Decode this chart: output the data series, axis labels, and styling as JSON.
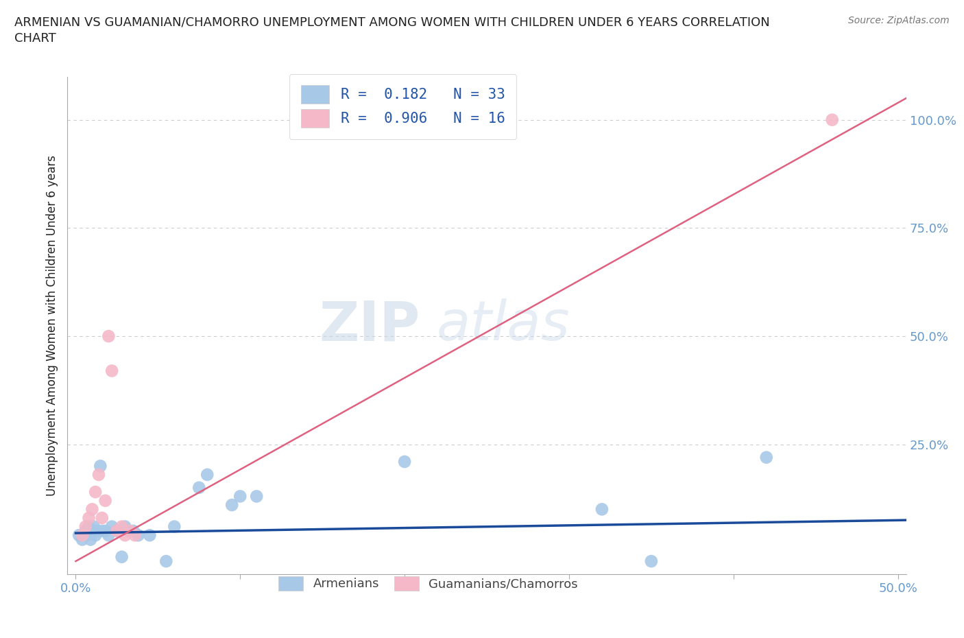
{
  "title": "ARMENIAN VS GUAMANIAN/CHAMORRO UNEMPLOYMENT AMONG WOMEN WITH CHILDREN UNDER 6 YEARS CORRELATION\nCHART",
  "source": "Source: ZipAtlas.com",
  "ylabel": "Unemployment Among Women with Children Under 6 years",
  "xlim": [
    -0.005,
    0.505
  ],
  "ylim": [
    -0.05,
    1.1
  ],
  "xticks": [
    0.0,
    0.1,
    0.2,
    0.3,
    0.4,
    0.5
  ],
  "xticklabels": [
    "0.0%",
    "",
    "",
    "",
    "",
    "50.0%"
  ],
  "ytick_positions": [
    0.0,
    0.25,
    0.5,
    0.75,
    1.0
  ],
  "yticklabels": [
    "",
    "25.0%",
    "50.0%",
    "75.0%",
    "100.0%"
  ],
  "armenian_color": "#a8c8e8",
  "guamanian_color": "#f4b8c8",
  "armenian_line_color": "#1a4a9a",
  "guamanian_line_color": "#e06080",
  "armenian_x": [
    0.002,
    0.004,
    0.006,
    0.007,
    0.008,
    0.009,
    0.01,
    0.011,
    0.012,
    0.013,
    0.015,
    0.016,
    0.018,
    0.02,
    0.022,
    0.025,
    0.028,
    0.03,
    0.032,
    0.035,
    0.038,
    0.045,
    0.055,
    0.06,
    0.075,
    0.08,
    0.095,
    0.1,
    0.11,
    0.2,
    0.32,
    0.35,
    0.42
  ],
  "armenian_y": [
    0.04,
    0.03,
    0.05,
    0.04,
    0.06,
    0.03,
    0.05,
    0.06,
    0.04,
    0.05,
    0.2,
    0.05,
    0.05,
    0.04,
    0.06,
    0.05,
    -0.01,
    0.06,
    0.05,
    0.05,
    0.04,
    0.04,
    -0.02,
    0.06,
    0.15,
    0.18,
    0.11,
    0.13,
    0.13,
    0.21,
    0.1,
    -0.02,
    0.22
  ],
  "armenian_line_x0": 0.0,
  "armenian_line_x1": 0.505,
  "armenian_line_y0": 0.045,
  "armenian_line_y1": 0.075,
  "guamanian_x": [
    0.004,
    0.006,
    0.008,
    0.01,
    0.012,
    0.014,
    0.016,
    0.018,
    0.02,
    0.022,
    0.025,
    0.028,
    0.03,
    0.033,
    0.036,
    0.46
  ],
  "guamanian_y": [
    0.04,
    0.06,
    0.08,
    0.1,
    0.14,
    0.18,
    0.08,
    0.12,
    0.5,
    0.42,
    0.05,
    0.06,
    0.04,
    0.05,
    0.04,
    1.0
  ],
  "guamanian_line_x0": 0.0,
  "guamanian_line_x1": 0.505,
  "guamanian_line_y0": -0.02,
  "guamanian_line_y1": 1.05,
  "watermark_zip": "ZIP",
  "watermark_atlas": "atlas",
  "background_color": "#ffffff",
  "grid_color": "#cccccc",
  "title_color": "#222222",
  "axis_label_color": "#222222",
  "tick_label_color": "#6699cc",
  "legend_text_color": "#2255aa",
  "bottom_legend_color": "#444444"
}
